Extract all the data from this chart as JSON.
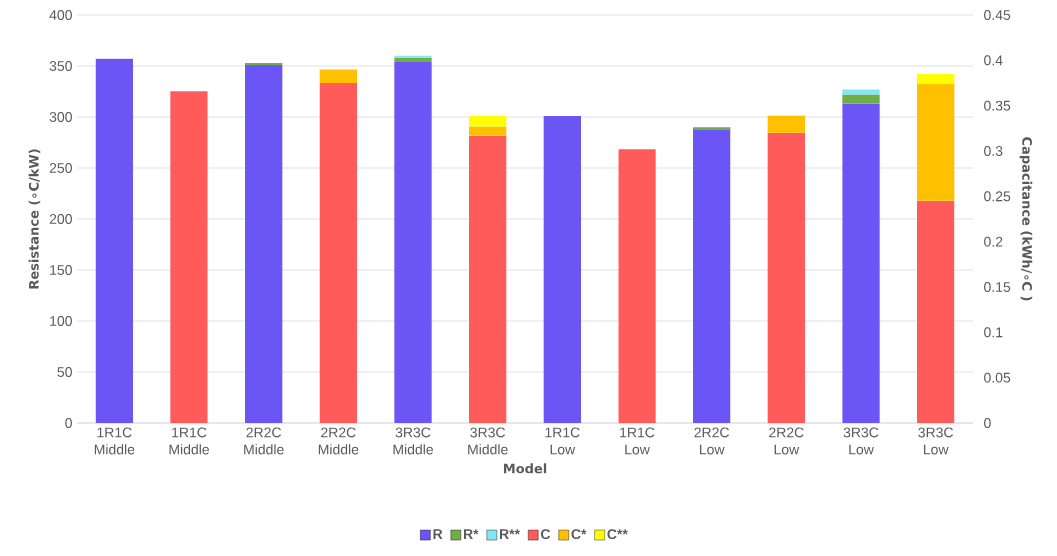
{
  "chart_data": {
    "type": "bar",
    "stacked": true,
    "xlabel": "Model",
    "ylabel": "Resistance (∘C/kW)",
    "y2label": "Capacitance (kWh/∘C )",
    "categories": [
      "1R1C Middle",
      "1R1C Middle",
      "2R2C Middle",
      "2R2C Middle",
      "3R3C Middle",
      "3R3C Middle",
      "1R1C Low",
      "1R1C Low",
      "2R2C Low",
      "2R2C Low",
      "3R3C Low",
      "3R3C Low"
    ],
    "series": [
      {
        "name": "R",
        "color": "#6c55f5",
        "values": [
          357,
          null,
          351,
          null,
          354,
          null,
          301,
          null,
          288,
          null,
          313,
          null
        ]
      },
      {
        "name": "R*",
        "color": "#70ad47",
        "values": [
          null,
          null,
          2,
          null,
          4,
          null,
          null,
          null,
          2,
          null,
          9,
          null
        ]
      },
      {
        "name": "R**",
        "color": "#7fe8f5",
        "values": [
          null,
          null,
          null,
          null,
          2,
          null,
          null,
          null,
          null,
          null,
          5,
          null
        ]
      },
      {
        "name": "C",
        "color": "#ff5b5b",
        "axis": "y2",
        "values": [
          null,
          0.366,
          null,
          0.375,
          null,
          0.317,
          null,
          0.302,
          null,
          0.32,
          null,
          0.245
        ]
      },
      {
        "name": "C*",
        "color": "#ffc000",
        "axis": "y2",
        "values": [
          null,
          null,
          null,
          0.015,
          null,
          0.01,
          null,
          null,
          null,
          0.019,
          null,
          0.129
        ]
      },
      {
        "name": "C**",
        "color": "#ffff00",
        "axis": "y2",
        "values": [
          null,
          null,
          null,
          null,
          null,
          0.012,
          null,
          null,
          null,
          null,
          null,
          0.011
        ]
      }
    ],
    "ylim": [
      0,
      400
    ],
    "yticks": [
      0,
      50,
      100,
      150,
      200,
      250,
      300,
      350,
      400
    ],
    "y2lim": [
      0,
      0.45
    ],
    "y2ticks": [
      0,
      0.05,
      0.1,
      0.15,
      0.2,
      0.25,
      0.3,
      0.35,
      0.4,
      0.45
    ],
    "grid": "y",
    "legend": "bottom"
  }
}
